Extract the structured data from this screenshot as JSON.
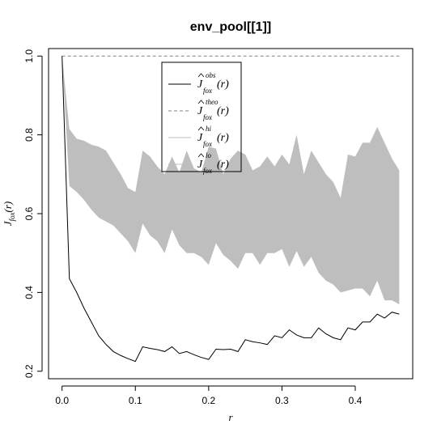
{
  "chart_data": {
    "type": "line",
    "title": "env_pool[[1]]",
    "xlabel": "r",
    "ylabel": {
      "main": "J",
      "sub": "fox",
      "arg": "(r)"
    },
    "xlim": [
      -0.0184,
      0.4784
    ],
    "ylim": [
      0.181,
      1.019
    ],
    "xticks": [
      0.0,
      0.1,
      0.2,
      0.3,
      0.4
    ],
    "xtick_labels": [
      "0.0",
      "0.1",
      "0.2",
      "0.3",
      "0.4"
    ],
    "yticks": [
      0.2,
      0.4,
      0.6,
      0.8,
      1.0
    ],
    "ytick_labels": [
      "0.2",
      "0.4",
      "0.6",
      "0.8",
      "1.0"
    ],
    "grid": false,
    "legend_position": "top-center",
    "x": [
      0.0,
      0.01,
      0.02,
      0.03,
      0.04,
      0.05,
      0.06,
      0.07,
      0.08,
      0.09,
      0.1,
      0.11,
      0.12,
      0.13,
      0.14,
      0.15,
      0.16,
      0.17,
      0.18,
      0.19,
      0.2,
      0.21,
      0.22,
      0.23,
      0.24,
      0.25,
      0.26,
      0.27,
      0.28,
      0.29,
      0.3,
      0.31,
      0.32,
      0.33,
      0.34,
      0.35,
      0.36,
      0.37,
      0.38,
      0.39,
      0.4,
      0.41,
      0.42,
      0.43,
      0.44,
      0.45,
      0.46
    ],
    "series": [
      {
        "name": "obs",
        "color": "#000000",
        "style": "solid",
        "values": [
          1.0,
          0.435,
          0.4,
          0.36,
          0.325,
          0.29,
          0.268,
          0.25,
          0.24,
          0.232,
          0.225,
          0.262,
          0.258,
          0.255,
          0.25,
          0.262,
          0.245,
          0.25,
          0.242,
          0.235,
          0.23,
          0.256,
          0.255,
          0.256,
          0.25,
          0.28,
          0.275,
          0.272,
          0.268,
          0.29,
          0.285,
          0.305,
          0.292,
          0.285,
          0.285,
          0.31,
          0.295,
          0.285,
          0.28,
          0.31,
          0.305,
          0.325,
          0.325,
          0.345,
          0.335,
          0.35,
          0.345
        ]
      },
      {
        "name": "theo",
        "color": "#808080",
        "style": "dashed",
        "values": [
          1.0,
          1.0,
          1.0,
          1.0,
          1.0,
          1.0,
          1.0,
          1.0,
          1.0,
          1.0,
          1.0,
          1.0,
          1.0,
          1.0,
          1.0,
          1.0,
          1.0,
          1.0,
          1.0,
          1.0,
          1.0,
          1.0,
          1.0,
          1.0,
          1.0,
          1.0,
          1.0,
          1.0,
          1.0,
          1.0,
          1.0,
          1.0,
          1.0,
          1.0,
          1.0,
          1.0,
          1.0,
          1.0,
          1.0,
          1.0,
          1.0,
          1.0,
          1.0,
          1.0,
          1.0,
          1.0,
          1.0
        ]
      },
      {
        "name": "hi",
        "color": "#bebebe",
        "style": "band-upper",
        "values": [
          1.0,
          0.815,
          0.79,
          0.785,
          0.775,
          0.77,
          0.76,
          0.73,
          0.7,
          0.665,
          0.655,
          0.76,
          0.745,
          0.72,
          0.7,
          0.745,
          0.705,
          0.76,
          0.715,
          0.705,
          0.77,
          0.765,
          0.7,
          0.74,
          0.76,
          0.75,
          0.71,
          0.72,
          0.745,
          0.72,
          0.75,
          0.725,
          0.8,
          0.7,
          0.76,
          0.73,
          0.7,
          0.68,
          0.64,
          0.75,
          0.745,
          0.78,
          0.78,
          0.82,
          0.78,
          0.74,
          0.71
        ]
      },
      {
        "name": "lo",
        "color": "#bebebe",
        "style": "band-lower",
        "values": [
          1.0,
          0.67,
          0.655,
          0.635,
          0.61,
          0.59,
          0.58,
          0.57,
          0.55,
          0.53,
          0.5,
          0.575,
          0.545,
          0.53,
          0.5,
          0.56,
          0.52,
          0.5,
          0.5,
          0.49,
          0.47,
          0.525,
          0.495,
          0.48,
          0.46,
          0.5,
          0.5,
          0.47,
          0.5,
          0.5,
          0.51,
          0.465,
          0.505,
          0.465,
          0.49,
          0.45,
          0.43,
          0.42,
          0.4,
          0.405,
          0.41,
          0.41,
          0.39,
          0.43,
          0.38,
          0.38,
          0.37
        ]
      }
    ],
    "legend": [
      {
        "series": "obs",
        "sup": "obs",
        "style": "solid",
        "color": "#000000"
      },
      {
        "series": "theo",
        "sup": "theo",
        "style": "dashed",
        "color": "#808080"
      },
      {
        "series": "hi",
        "sup": "hi",
        "style": "solid",
        "color": "#bebebe"
      },
      {
        "series": "lo",
        "sup": "lo",
        "style": "solid",
        "color": "#bebebe"
      }
    ],
    "legend_common": {
      "main": "J",
      "sub": "fox",
      "arg": "(r)"
    },
    "band_color": "#bebebe"
  }
}
